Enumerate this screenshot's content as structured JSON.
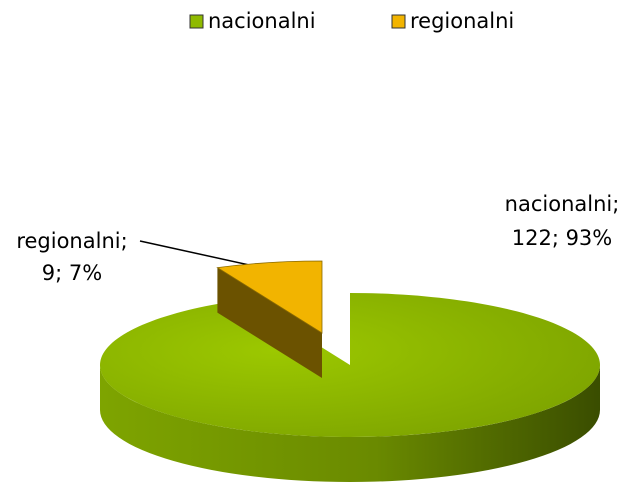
{
  "chart_data": {
    "type": "pie3d",
    "categories": [
      "nacionalni",
      "regionalni"
    ],
    "values": [
      122,
      9
    ],
    "value_labels": [
      [
        "nacionalni;",
        "122; 93%"
      ],
      [
        "regionalni;",
        "9; 7%"
      ]
    ],
    "colors": [
      "#8fba00",
      "#f2b400"
    ],
    "legend": "top"
  }
}
